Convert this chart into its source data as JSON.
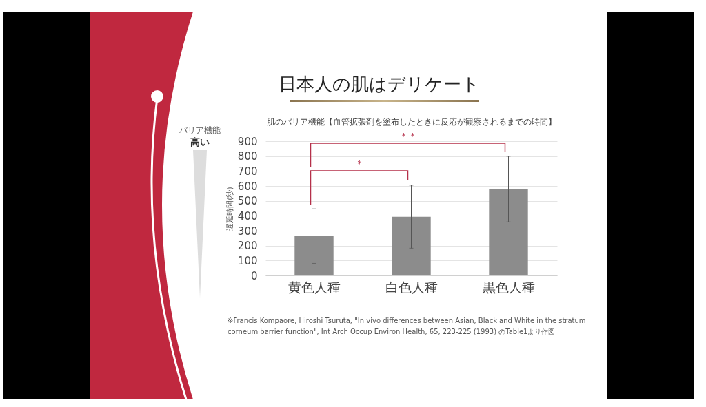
{
  "chart_data": {
    "type": "bar",
    "title": "日本人の肌はデリケート",
    "subtitle": "肌のバリア機能【血管拡張剤を塗布したときに反応が観察されるまでの時間】",
    "ylabel": "遅延時間(秒)",
    "categories": [
      "黄色人種",
      "白色人種",
      "黒色人種"
    ],
    "values": [
      264,
      394,
      579
    ],
    "color": "#8c8c8c",
    "errors": [
      [
        81,
        447
      ],
      [
        183,
        605
      ],
      [
        359,
        799
      ]
    ],
    "ylim": [
      0,
      900
    ],
    "yticks": [
      0,
      100,
      200,
      300,
      400,
      500,
      600,
      700,
      800,
      900
    ],
    "grid": "y",
    "annotations": [
      "＊",
      "＊＊",
      "バリア機能",
      "高い",
      "※Francis Kompaore, Hiroshi Tsuruta, \"In vivo differences between Asian, Black and White in the stratum corneum barrier function\", Int Arch Occup Environ Health, 65, 223-225 (1993) のTable1より作図"
    ]
  }
}
